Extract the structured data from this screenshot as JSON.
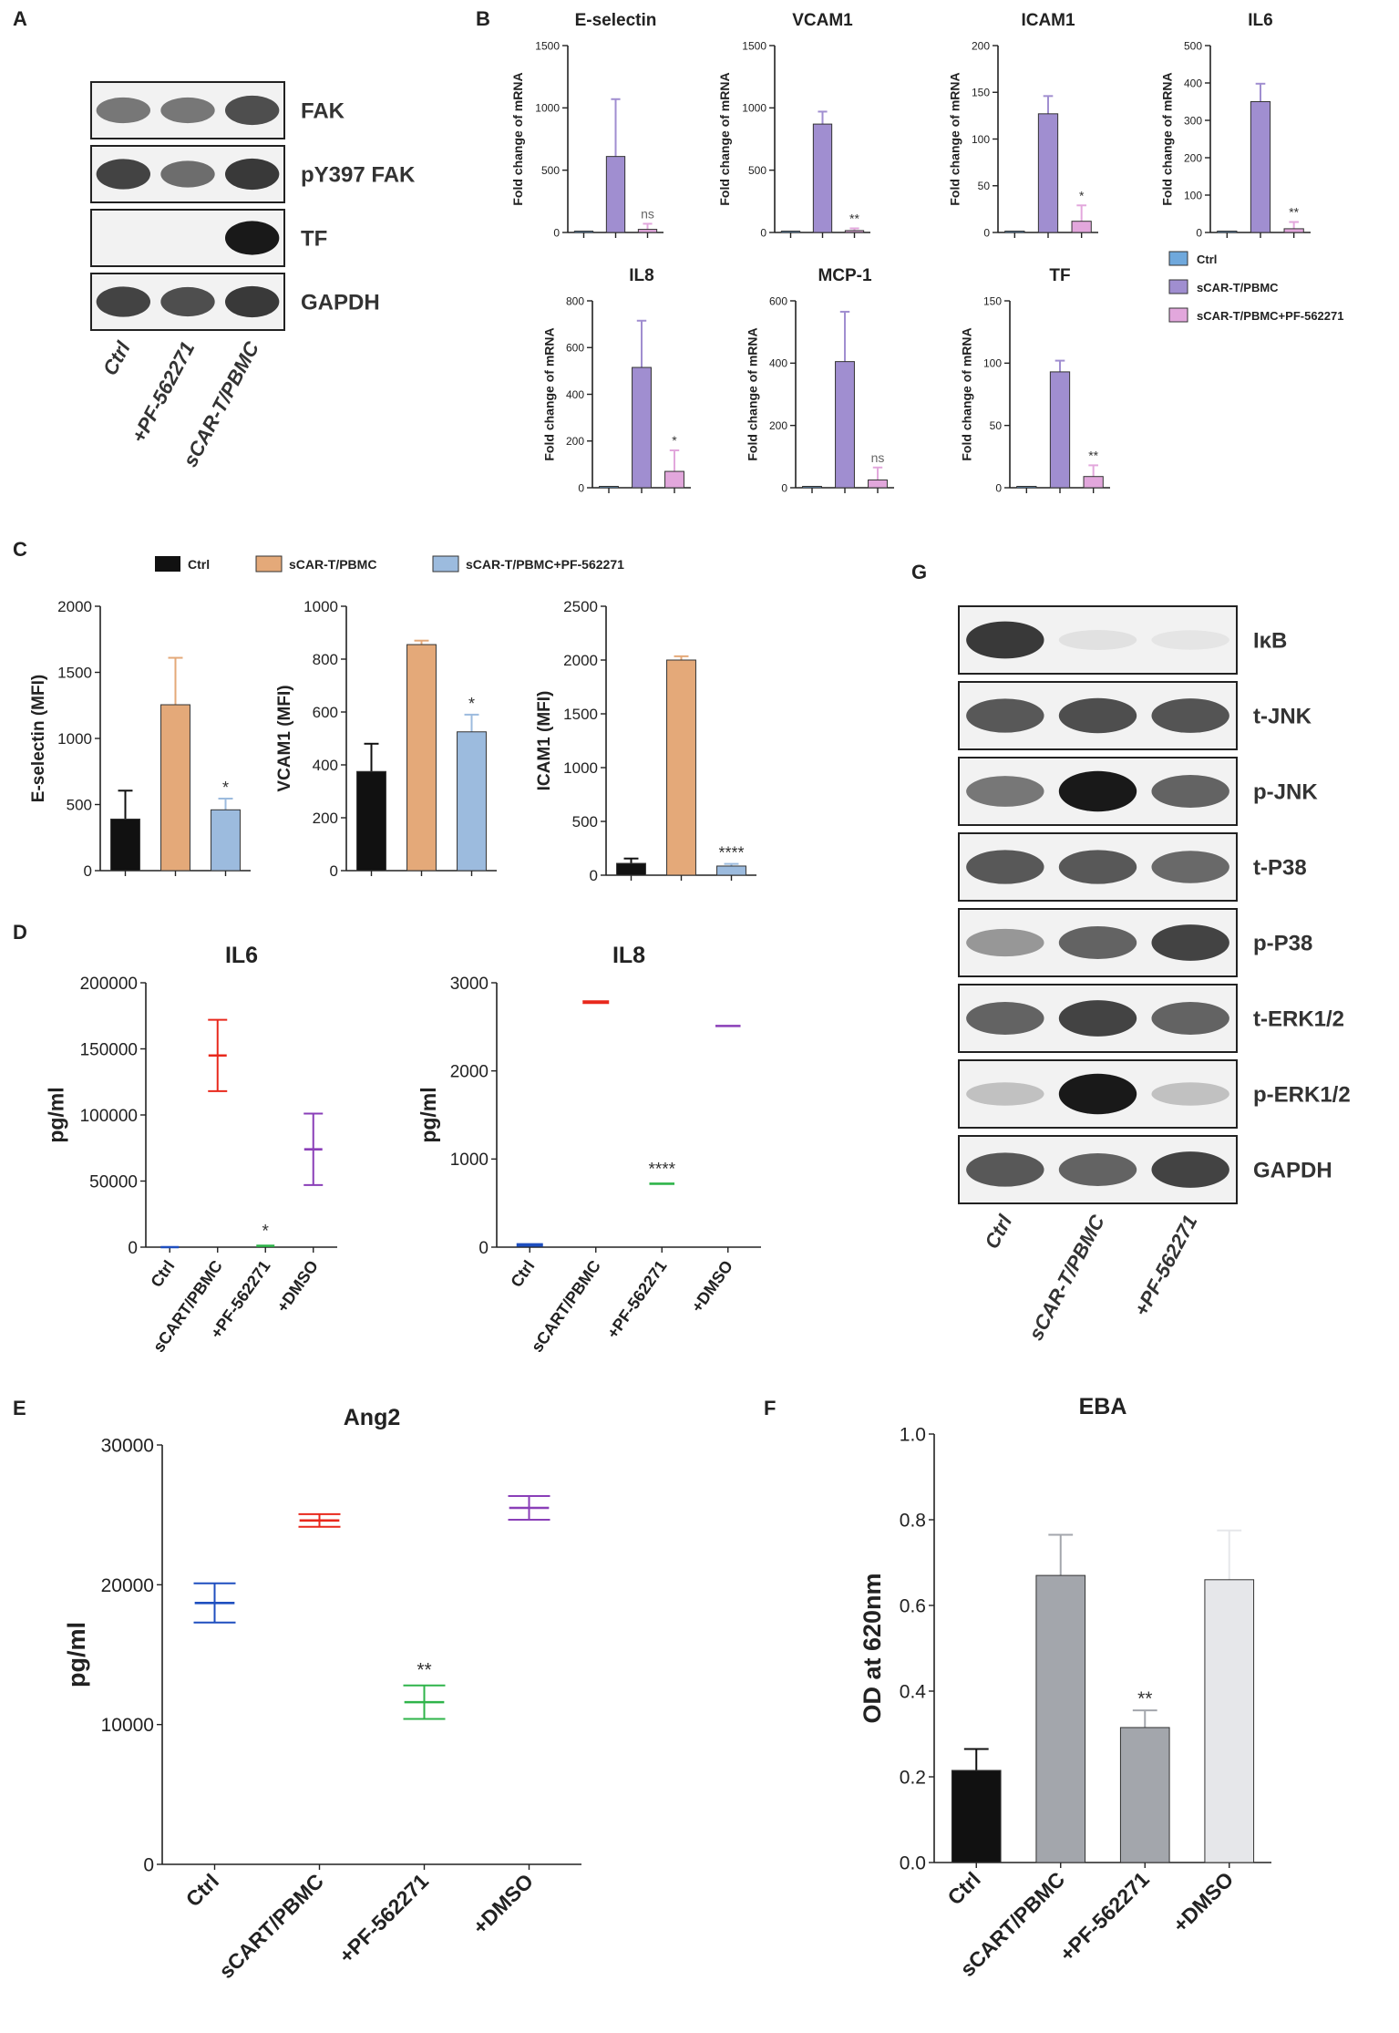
{
  "figure": {
    "panel_letters": [
      "A",
      "B",
      "C",
      "D",
      "E",
      "F",
      "G"
    ],
    "colors": {
      "ctrl_blue": "#6fa8dc",
      "scar_purple": "#a08ed0",
      "pf_pink": "#e2a7dc",
      "ctrl_black": "#111111",
      "scar_orange": "#e4a979",
      "pf_lightblue": "#9cbbde",
      "elisa_blue": "#1f4fbf",
      "elisa_red": "#e8281c",
      "elisa_green": "#2fb44a",
      "elisa_purple": "#8a3fb8",
      "eba_black": "#111111",
      "eba_gray": "#a3a6ac",
      "eba_gray2": "#a3a6ac",
      "eba_light": "#e6e7ea"
    }
  },
  "panel_a": {
    "bands": [
      "FAK",
      "pY397 FAK",
      "TF",
      "GAPDH"
    ],
    "lanes": [
      "Ctrl",
      "+PF-562271",
      "sCAR-T/PBMC"
    ]
  },
  "panel_g": {
    "bands": [
      "IκB",
      "t-JNK",
      "p-JNK",
      "t-P38",
      "p-P38",
      "t-ERK1/2",
      "p-ERK1/2",
      "GAPDH"
    ],
    "lanes": [
      "Ctrl",
      "sCAR-T/PBMC",
      "+PF-562271"
    ]
  },
  "chart_data": [
    {
      "panel": "B",
      "type": "bar",
      "title": "E-selectin",
      "ylabel": "Fold change of mRNA",
      "categories": [
        "Ctrl",
        "sCAR-T/PBMC",
        "sCAR-T/PBMC+PF-562271"
      ],
      "values": [
        1,
        610,
        25
      ],
      "errors": [
        0,
        460,
        45
      ],
      "sig": [
        "",
        "",
        "ns"
      ],
      "ylim": [
        0,
        1500
      ],
      "yticks": [
        "0",
        "500",
        "1000",
        "1500"
      ],
      "colors": [
        "ctrl_blue",
        "scar_purple",
        "pf_pink"
      ]
    },
    {
      "panel": "B",
      "type": "bar",
      "title": "VCAM1",
      "ylabel": "Fold change of mRNA",
      "categories": [
        "Ctrl",
        "sCAR-T/PBMC",
        "sCAR-T/PBMC+PF-562271"
      ],
      "values": [
        1,
        870,
        15
      ],
      "errors": [
        0,
        100,
        18
      ],
      "sig": [
        "",
        "",
        "**"
      ],
      "ylim": [
        0,
        1500
      ],
      "yticks": [
        "0",
        "500",
        "1000",
        "1500"
      ],
      "colors": [
        "ctrl_blue",
        "scar_purple",
        "pf_pink"
      ]
    },
    {
      "panel": "B",
      "type": "bar",
      "title": "ICAM1",
      "ylabel": "Fold change of mRNA",
      "categories": [
        "Ctrl",
        "sCAR-T/PBMC",
        "sCAR-T/PBMC+PF-562271"
      ],
      "values": [
        1,
        127,
        12
      ],
      "errors": [
        0,
        19,
        17
      ],
      "sig": [
        "",
        "",
        "*"
      ],
      "ylim": [
        0,
        200
      ],
      "yticks": [
        "0",
        "50",
        "100",
        "150",
        "200"
      ],
      "colors": [
        "ctrl_blue",
        "scar_purple",
        "pf_pink"
      ]
    },
    {
      "panel": "B",
      "type": "bar",
      "title": "IL6",
      "ylabel": "Fold change of mRNA",
      "categories": [
        "Ctrl",
        "sCAR-T/PBMC",
        "sCAR-T/PBMC+PF-562271"
      ],
      "values": [
        1,
        350,
        10
      ],
      "errors": [
        0,
        48,
        18
      ],
      "sig": [
        "",
        "",
        "**"
      ],
      "ylim": [
        0,
        500
      ],
      "yticks": [
        "0",
        "100",
        "200",
        "300",
        "400",
        "500"
      ],
      "colors": [
        "ctrl_blue",
        "scar_purple",
        "pf_pink"
      ]
    },
    {
      "panel": "B",
      "type": "bar",
      "title": "IL8",
      "ylabel": "Fold change of mRNA",
      "categories": [
        "Ctrl",
        "sCAR-T/PBMC",
        "sCAR-T/PBMC+PF-562271"
      ],
      "values": [
        1,
        515,
        70
      ],
      "errors": [
        0,
        200,
        90
      ],
      "sig": [
        "",
        "",
        "*"
      ],
      "ylim": [
        0,
        800
      ],
      "yticks": [
        "0",
        "200",
        "400",
        "600",
        "800"
      ],
      "colors": [
        "ctrl_blue",
        "scar_purple",
        "pf_pink"
      ]
    },
    {
      "panel": "B",
      "type": "bar",
      "title": "MCP-1",
      "ylabel": "Fold change of mRNA",
      "categories": [
        "Ctrl",
        "sCAR-T/PBMC",
        "sCAR-T/PBMC+PF-562271"
      ],
      "values": [
        1,
        405,
        25
      ],
      "errors": [
        0,
        160,
        40
      ],
      "sig": [
        "",
        "",
        "ns"
      ],
      "ylim": [
        0,
        600
      ],
      "yticks": [
        "0",
        "200",
        "400",
        "600"
      ],
      "colors": [
        "ctrl_blue",
        "scar_purple",
        "pf_pink"
      ]
    },
    {
      "panel": "B",
      "type": "bar",
      "title": "TF",
      "ylabel": "Fold change of mRNA",
      "categories": [
        "Ctrl",
        "sCAR-T/PBMC",
        "sCAR-T/PBMC+PF-562271"
      ],
      "values": [
        1,
        93,
        9
      ],
      "errors": [
        0,
        9,
        9
      ],
      "sig": [
        "",
        "",
        "**"
      ],
      "ylim": [
        0,
        150
      ],
      "yticks": [
        "0",
        "50",
        "100",
        "150"
      ],
      "colors": [
        "ctrl_blue",
        "scar_purple",
        "pf_pink"
      ]
    },
    {
      "panel": "C",
      "type": "bar",
      "title": "",
      "ylabel": "E-selectin (MFI)",
      "categories": [
        "Ctrl",
        "sCAR-T/PBMC",
        "sCAR-T/PBMC+PF-562271"
      ],
      "values": [
        390,
        1255,
        460
      ],
      "errors": [
        215,
        355,
        85
      ],
      "sig": [
        "",
        "",
        "*"
      ],
      "ylim": [
        0,
        2000
      ],
      "yticks": [
        "0",
        "500",
        "1000",
        "1500",
        "2000"
      ],
      "colors": [
        "ctrl_black",
        "scar_orange",
        "pf_lightblue"
      ]
    },
    {
      "panel": "C",
      "type": "bar",
      "title": "",
      "ylabel": "VCAM1 (MFI)",
      "categories": [
        "Ctrl",
        "sCAR-T/PBMC",
        "sCAR-T/PBMC+PF-562271"
      ],
      "values": [
        375,
        855,
        525
      ],
      "errors": [
        105,
        15,
        65
      ],
      "sig": [
        "",
        "",
        "*"
      ],
      "ylim": [
        0,
        1000
      ],
      "yticks": [
        "0",
        "200",
        "400",
        "600",
        "800",
        "1000"
      ],
      "colors": [
        "ctrl_black",
        "scar_orange",
        "pf_lightblue"
      ]
    },
    {
      "panel": "C",
      "type": "bar",
      "title": "",
      "ylabel": "ICAM1 (MFI)",
      "categories": [
        "Ctrl",
        "sCAR-T/PBMC",
        "sCAR-T/PBMC+PF-562271"
      ],
      "values": [
        110,
        2000,
        85
      ],
      "errors": [
        45,
        35,
        20
      ],
      "sig": [
        "",
        "",
        "****"
      ],
      "ylim": [
        0,
        2500
      ],
      "yticks": [
        "0",
        "500",
        "1000",
        "1500",
        "2000",
        "2500"
      ],
      "colors": [
        "ctrl_black",
        "scar_orange",
        "pf_lightblue"
      ]
    },
    {
      "panel": "D",
      "type": "scatter",
      "title": "IL6",
      "ylabel": "pg/ml",
      "categories": [
        "Ctrl",
        "sCART/PBMC",
        "+PF-562271",
        "+DMSO"
      ],
      "means": [
        0,
        145000,
        1000,
        74000
      ],
      "errors": [
        0,
        27000,
        0,
        27000
      ],
      "sig": [
        "",
        "",
        "*",
        ""
      ],
      "ylim": [
        0,
        200000
      ],
      "yticks": [
        "0",
        "50000",
        "100000",
        "150000",
        "200000"
      ],
      "colors": [
        "elisa_blue",
        "elisa_red",
        "elisa_green",
        "elisa_purple"
      ]
    },
    {
      "panel": "D",
      "type": "scatter",
      "title": "IL8",
      "ylabel": "pg/ml",
      "categories": [
        "Ctrl",
        "sCART/PBMC",
        "+PF-562271",
        "+DMSO"
      ],
      "means": [
        25,
        2780,
        720,
        2510
      ],
      "errors": [
        10,
        10,
        0,
        0
      ],
      "sig": [
        "",
        "",
        "****",
        ""
      ],
      "ylim": [
        0,
        3000
      ],
      "yticks": [
        "0",
        "1000",
        "2000",
        "3000"
      ],
      "colors": [
        "elisa_blue",
        "elisa_red",
        "elisa_green",
        "elisa_purple"
      ]
    },
    {
      "panel": "E",
      "type": "scatter",
      "title": "Ang2",
      "ylabel": "pg/ml",
      "categories": [
        "Ctrl",
        "sCART/PBMC",
        "+PF-562271",
        "+DMSO"
      ],
      "means": [
        18700,
        24600,
        11600,
        25500
      ],
      "errors": [
        1400,
        450,
        1200,
        850
      ],
      "sig": [
        "",
        "",
        "**",
        ""
      ],
      "ylim": [
        0,
        30000
      ],
      "yticks": [
        "0",
        "10000",
        "20000",
        "30000"
      ],
      "colors": [
        "elisa_blue",
        "elisa_red",
        "elisa_green",
        "elisa_purple"
      ]
    },
    {
      "panel": "F",
      "type": "bar",
      "title": "EBA",
      "ylabel": "OD at 620nm",
      "categories": [
        "Ctrl",
        "sCART/PBMC",
        "+PF-562271",
        "+DMSO"
      ],
      "values": [
        0.215,
        0.67,
        0.315,
        0.66
      ],
      "errors": [
        0.05,
        0.095,
        0.04,
        0.115
      ],
      "sig": [
        "",
        "",
        "**",
        ""
      ],
      "ylim": [
        0,
        1.0
      ],
      "yticks": [
        "0.0",
        "0.2",
        "0.4",
        "0.6",
        "0.8",
        "1.0"
      ],
      "colors": [
        "eba_black",
        "eba_gray",
        "eba_gray2",
        "eba_light"
      ]
    }
  ],
  "legends": {
    "b": [
      "Ctrl",
      "sCAR-T/PBMC",
      "sCAR-T/PBMC+PF-562271"
    ],
    "c": [
      "Ctrl",
      "sCAR-T/PBMC",
      "sCAR-T/PBMC+PF-562271"
    ]
  }
}
